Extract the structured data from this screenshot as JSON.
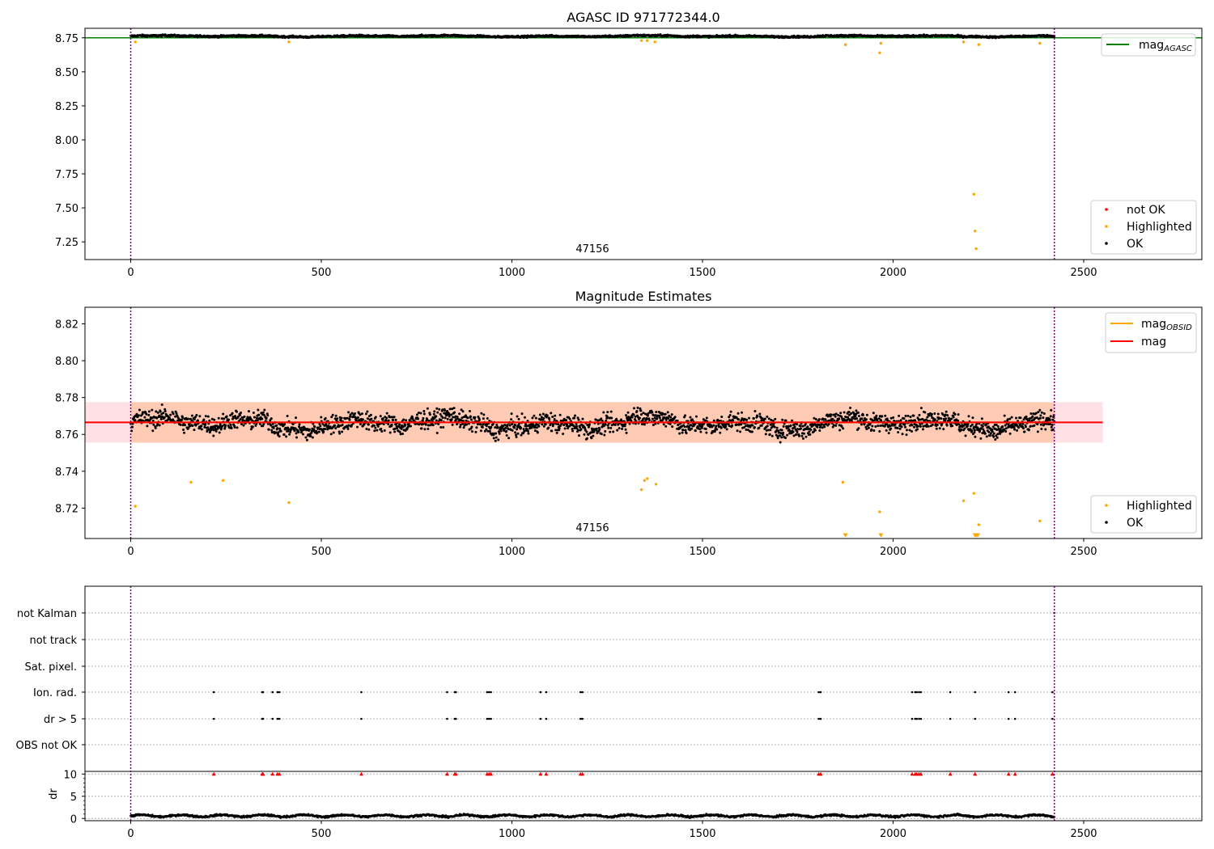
{
  "chart_data": [
    {
      "type": "scatter",
      "title": "AGASC ID 971772344.0",
      "annotation": "47156",
      "xlim": [
        -120,
        2810
      ],
      "ylim": [
        7.12,
        8.82
      ],
      "xticks": [
        0,
        500,
        1000,
        1500,
        2000,
        2500
      ],
      "yticks": [
        7.25,
        7.5,
        7.75,
        8.0,
        8.25,
        8.5,
        8.75
      ],
      "ytick_labels": [
        "7.25",
        "7.50",
        "7.75",
        "8.00",
        "8.25",
        "8.50",
        "8.75"
      ],
      "vlines": [
        0,
        2423
      ],
      "hline": {
        "name": "mag_AGASC",
        "y": 8.75,
        "color": "#008000"
      },
      "legend_upper": [
        {
          "label": "mag",
          "sub": "AGASC",
          "color": "#008000"
        }
      ],
      "legend_lower": [
        {
          "label": "not OK",
          "color": "#ff0000"
        },
        {
          "label": "Highlighted",
          "color": "#ffa500"
        },
        {
          "label": "OK",
          "color": "#000000"
        }
      ],
      "series": [
        {
          "name": "OK",
          "color": "#000000",
          "x_range": [
            0,
            2423
          ],
          "baseline": 8.762,
          "amplitude": 0.012
        },
        {
          "name": "Highlighted",
          "color": "#ffa500",
          "x": [
            12,
            415,
            1340,
            1355,
            1375,
            1875,
            1965,
            1968,
            2185,
            2212,
            2215,
            2218,
            2225,
            2385
          ],
          "y": [
            8.72,
            8.72,
            8.73,
            8.73,
            8.72,
            8.7,
            8.64,
            8.71,
            8.72,
            7.6,
            7.33,
            7.2,
            8.7,
            8.71
          ]
        }
      ]
    },
    {
      "type": "scatter",
      "title": "Magnitude Estimates",
      "annotation": "47156",
      "xlim": [
        -120,
        2810
      ],
      "ylim": [
        8.7035,
        8.829
      ],
      "xticks": [
        0,
        500,
        1000,
        1500,
        2000,
        2500
      ],
      "yticks": [
        8.72,
        8.74,
        8.76,
        8.78,
        8.8,
        8.82
      ],
      "ytick_labels": [
        "8.72",
        "8.74",
        "8.76",
        "8.78",
        "8.80",
        "8.82"
      ],
      "vlines": [
        0,
        2423
      ],
      "mag": {
        "y": 8.7665,
        "band": [
          8.7555,
          8.7775
        ],
        "x_range": [
          -120,
          2550
        ],
        "color": "#ff0000"
      },
      "mag_obsid": {
        "y": 8.7665,
        "band": [
          8.7555,
          8.7775
        ],
        "x_range": [
          0,
          2423
        ],
        "color": "#ffa500"
      },
      "legend_upper": [
        {
          "label": "mag",
          "sub": "OBSID",
          "color": "#ffa500"
        },
        {
          "label": "mag",
          "sub": "",
          "color": "#ff0000"
        }
      ],
      "legend_lower": [
        {
          "label": "Highlighted",
          "color": "#ffa500"
        },
        {
          "label": "OK",
          "color": "#000000"
        }
      ],
      "series": [
        {
          "name": "OK",
          "color": "#000000",
          "x_range": [
            0,
            2423
          ],
          "baseline": 8.766,
          "amplitude": 0.009
        },
        {
          "name": "Highlighted",
          "color": "#ffa500",
          "x": [
            12,
            158,
            242,
            415,
            1340,
            1348,
            1355,
            1378,
            1868,
            1965,
            2185,
            2212,
            2225,
            2385
          ],
          "y": [
            8.721,
            8.734,
            8.735,
            8.723,
            8.73,
            8.735,
            8.736,
            8.733,
            8.734,
            8.718,
            8.724,
            8.728,
            8.711,
            8.713
          ]
        },
        {
          "name": "Highlighted (off-axis)",
          "color": "#ffa500",
          "marker": "triangle-down",
          "x": [
            1875,
            1968,
            2215,
            2218,
            2222
          ],
          "y": [
            8.705,
            8.705,
            8.705,
            8.705,
            8.705
          ]
        }
      ]
    },
    {
      "type": "scatter",
      "title": "",
      "xlim": [
        -120,
        2810
      ],
      "xticks": [
        0,
        500,
        1000,
        1500,
        2000,
        2500
      ],
      "vlines": [
        0,
        2423
      ],
      "flag_rows": [
        "not Kalman",
        "not track",
        "Sat. pixel.",
        "Ion. rad.",
        "dr > 5",
        "OBS not OK"
      ],
      "flags": {
        "not Kalman": [
          2423
        ],
        "not track": [],
        "Sat. pixel.": [],
        "Ion. rad.": [
          218,
          345,
          347,
          372,
          385,
          390,
          605,
          830,
          850,
          853,
          935,
          940,
          945,
          1075,
          1090,
          1180,
          1185,
          1805,
          1810,
          2050,
          2058,
          2062,
          2068,
          2073,
          2150,
          2215,
          2303,
          2320,
          2418
        ],
        "dr > 5": [
          218,
          345,
          347,
          372,
          385,
          390,
          605,
          830,
          850,
          853,
          935,
          940,
          945,
          1075,
          1090,
          1180,
          1185,
          1805,
          1810,
          2050,
          2058,
          2062,
          2068,
          2073,
          2150,
          2215,
          2303,
          2320,
          2418
        ],
        "OBS not OK": []
      },
      "dr_ylabel": "dr",
      "dr_yticks": [
        0,
        5,
        10
      ],
      "dr_ylim": [
        -0.5,
        10.6
      ],
      "dr_markers": {
        "color": "#ff0000",
        "y": 10,
        "x": [
          218,
          345,
          347,
          372,
          385,
          390,
          605,
          830,
          850,
          853,
          935,
          940,
          945,
          1075,
          1090,
          1180,
          1185,
          1805,
          1810,
          2050,
          2058,
          2062,
          2068,
          2073,
          2150,
          2215,
          2303,
          2320,
          2418
        ]
      },
      "dr_series": {
        "name": "dr",
        "color": "#000000",
        "x_range": [
          0,
          2423
        ],
        "baseline": 0.6,
        "amplitude": 0.35
      }
    }
  ]
}
